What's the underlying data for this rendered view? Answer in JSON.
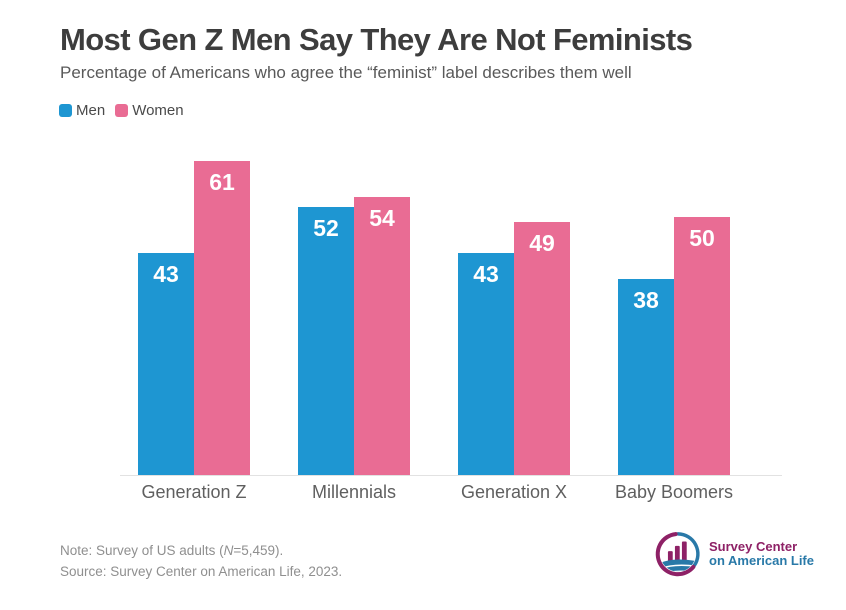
{
  "title": "Most Gen Z Men Say They Are Not Feminists",
  "subtitle": "Percentage of Americans who agree the “feminist” label describes them well",
  "chart_data": {
    "type": "bar",
    "title": "Most Gen Z Men Say They Are Not Feminists",
    "subtitle": "Percentage of Americans who agree the “feminist” label describes them well",
    "categories": [
      "Generation Z",
      "Millennials",
      "Generation X",
      "Baby Boomers"
    ],
    "series": [
      {
        "name": "Men",
        "color": "#1E96D2",
        "values": [
          43,
          52,
          43,
          38
        ]
      },
      {
        "name": "Women",
        "color": "#E96C94",
        "values": [
          61,
          54,
          49,
          50
        ]
      }
    ],
    "xlabel": "",
    "ylabel": "",
    "ylim": [
      0,
      65
    ],
    "grid": false,
    "axis_line": "bottom-only",
    "legend_position": "top-left",
    "value_labels": "inside-top-white"
  },
  "footer": {
    "note_prefix": "Note: Survey of US adults (",
    "note_n": "N",
    "note_suffix": "=5,459).",
    "source": "Source: Survey Center on American Life, 2023.",
    "logo": {
      "line1": "Survey Center",
      "line2": "on American Life"
    }
  },
  "colors": {
    "title_text": "#3d3d3d",
    "subtitle_text": "#595959",
    "legend_text": "#4a4a4a",
    "category_label": "#5f5f5f",
    "note_text": "#8f8f8f",
    "axis_line": "#e2e2e2",
    "bar_label": "#ffffff",
    "logo_maroon": "#8E2166",
    "logo_blue": "#2979A8"
  }
}
